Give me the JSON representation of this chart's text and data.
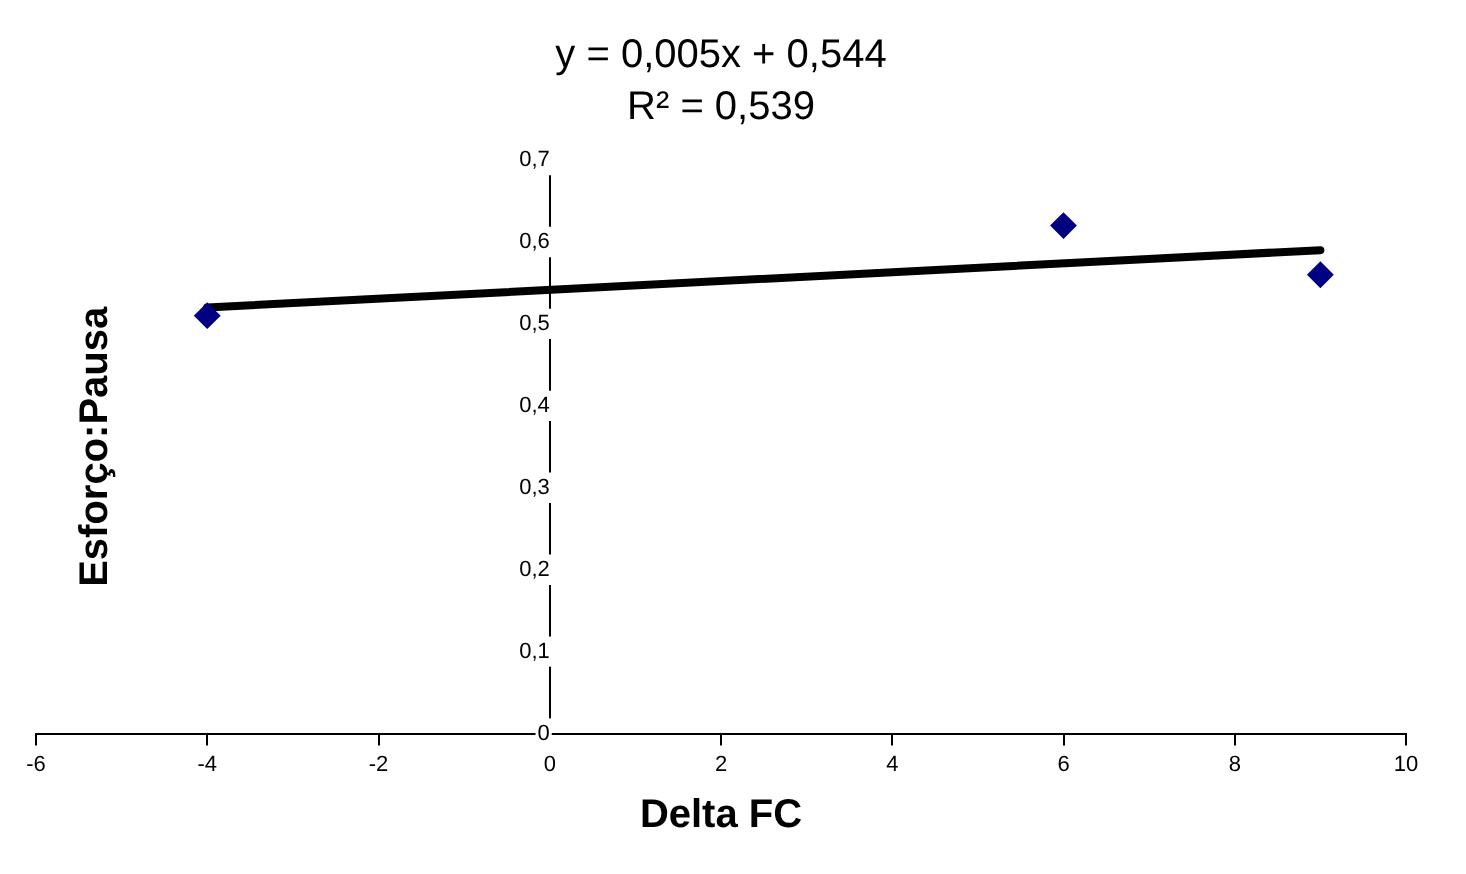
{
  "chart_data": {
    "type": "scatter",
    "title": "y = 0,005x + 0,544",
    "subtitle": "R² = 0,539",
    "xlabel": "Delta FC",
    "ylabel": "Esforço:Pausa",
    "x": [
      -4,
      6,
      9
    ],
    "series": [
      {
        "type": "scatter",
        "color": "#000080",
        "marker": "diamond",
        "values": [
          0.51,
          0.62,
          0.56
        ]
      },
      {
        "type": "line",
        "color": "#000000",
        "marker": "none",
        "x": [
          -4,
          9
        ],
        "values": [
          0.52,
          0.59
        ]
      }
    ],
    "xlim": [
      -6,
      10
    ],
    "xticks": [
      -6,
      -4,
      -2,
      0,
      2,
      4,
      6,
      8,
      10
    ],
    "ylim": [
      0,
      0.7
    ],
    "yticks": [
      0,
      {
        "value": 0.1,
        "label": "0,1"
      },
      {
        "value": 0.2,
        "label": "0,2"
      },
      {
        "value": 0.3,
        "label": "0,3"
      },
      {
        "value": 0.4,
        "label": "0,4"
      },
      {
        "value": 0.5,
        "label": "0,5"
      },
      {
        "value": 0.6,
        "label": "0,6"
      },
      {
        "value": 0.7,
        "label": "0,7"
      }
    ],
    "grid": false,
    "legend": false
  }
}
